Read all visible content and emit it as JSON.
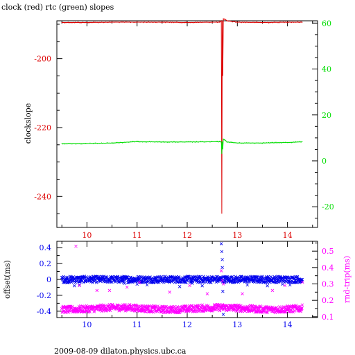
{
  "title": "clock (red) rtc (green) slopes",
  "footer": "2009-08-09  dilaton.physics.ubc.ca",
  "colors": {
    "clock": "#dd0000",
    "rtc": "#00dd00",
    "offset": "#0000ee",
    "rnd_trip": "#ff00ff",
    "axis": "#000000"
  },
  "chart_data": [
    {
      "type": "line",
      "title": "clock (red) rtc (green) slopes",
      "ylabel": "clockslope",
      "xlim": [
        9.4,
        14.6
      ],
      "ylim": [
        -249,
        -189
      ],
      "y2lim": [
        -29,
        61
      ],
      "x_ticks": [
        10,
        11,
        12,
        13,
        14
      ],
      "y_ticks": [
        -200,
        -220,
        -240
      ],
      "y2_ticks": [
        60,
        40,
        20,
        0,
        -20
      ],
      "series": [
        {
          "name": "clock",
          "axis": "left",
          "x": [
            9.5,
            10.0,
            10.5,
            11.0,
            11.5,
            12.0,
            12.5,
            12.65,
            12.68,
            12.69,
            12.7,
            12.71,
            12.72,
            12.75,
            12.8,
            13.0,
            13.5,
            14.0,
            14.3
          ],
          "y": [
            -189.5,
            -189.5,
            -189.4,
            -189.4,
            -189.4,
            -189.5,
            -189.4,
            -189.4,
            -189.0,
            -245.0,
            -189.0,
            -205.0,
            -188.5,
            -188.6,
            -189.0,
            -189.4,
            -189.5,
            -189.4,
            -189.4
          ]
        },
        {
          "name": "rtc",
          "axis": "right",
          "x": [
            9.5,
            10.0,
            10.5,
            11.0,
            11.5,
            12.0,
            12.5,
            12.65,
            12.68,
            12.69,
            12.7,
            12.71,
            12.72,
            12.75,
            12.8,
            13.0,
            13.5,
            14.0,
            14.3
          ],
          "y": [
            7.5,
            7.5,
            7.8,
            8.4,
            8.2,
            8.2,
            8.3,
            8.4,
            8.4,
            3.0,
            8.4,
            5.0,
            9.5,
            9.0,
            8.2,
            7.8,
            7.8,
            8.0,
            8.3
          ]
        }
      ]
    },
    {
      "type": "scatter",
      "ylabel": "offset(ms)",
      "y2label": "rnd-trip(ms)",
      "xlim": [
        9.4,
        14.6
      ],
      "ylim": [
        -0.48,
        0.48
      ],
      "y2lim": [
        0.095,
        0.56
      ],
      "x_ticks": [
        10,
        11,
        12,
        13,
        14
      ],
      "y_ticks": [
        "0.4",
        "0.2",
        "0",
        "-0.2",
        "-0.4"
      ],
      "y2_ticks": [
        "0.5",
        "0.4",
        "0.3",
        "0.2",
        "0.1"
      ],
      "series": [
        {
          "name": "offset",
          "axis": "left",
          "base": 0.0,
          "band": 0.04,
          "outliers": [
            [
              9.75,
              -0.08
            ],
            [
              9.85,
              -0.07
            ],
            [
              10.05,
              0.02
            ],
            [
              10.5,
              0.01
            ],
            [
              10.75,
              -0.05
            ],
            [
              11.0,
              -0.06
            ],
            [
              11.2,
              -0.07
            ],
            [
              11.85,
              -0.09
            ],
            [
              12.1,
              -0.05
            ],
            [
              12.3,
              -0.08
            ],
            [
              12.68,
              0.45
            ],
            [
              12.69,
              0.35
            ],
            [
              12.7,
              0.25
            ],
            [
              12.7,
              0.15
            ],
            [
              12.71,
              -0.15
            ],
            [
              12.71,
              -0.35
            ],
            [
              12.72,
              -0.44
            ],
            [
              13.2,
              -0.07
            ],
            [
              13.6,
              -0.08
            ],
            [
              13.9,
              -0.06
            ],
            [
              14.05,
              -0.07
            ],
            [
              14.2,
              -0.02
            ]
          ]
        },
        {
          "name": "rnd-trip",
          "axis": "right",
          "base": 0.15,
          "band": 0.02,
          "outliers": [
            [
              9.78,
              0.53
            ],
            [
              9.85,
              0.29
            ],
            [
              10.2,
              0.26
            ],
            [
              10.45,
              0.26
            ],
            [
              10.8,
              0.28
            ],
            [
              11.05,
              0.31
            ],
            [
              11.65,
              0.25
            ],
            [
              12.05,
              0.29
            ],
            [
              12.4,
              0.24
            ],
            [
              12.68,
              0.38
            ],
            [
              12.7,
              0.32
            ],
            [
              12.72,
              0.3
            ],
            [
              13.1,
              0.24
            ],
            [
              13.7,
              0.26
            ],
            [
              13.95,
              0.29
            ],
            [
              14.3,
              0.31
            ]
          ]
        }
      ]
    }
  ]
}
